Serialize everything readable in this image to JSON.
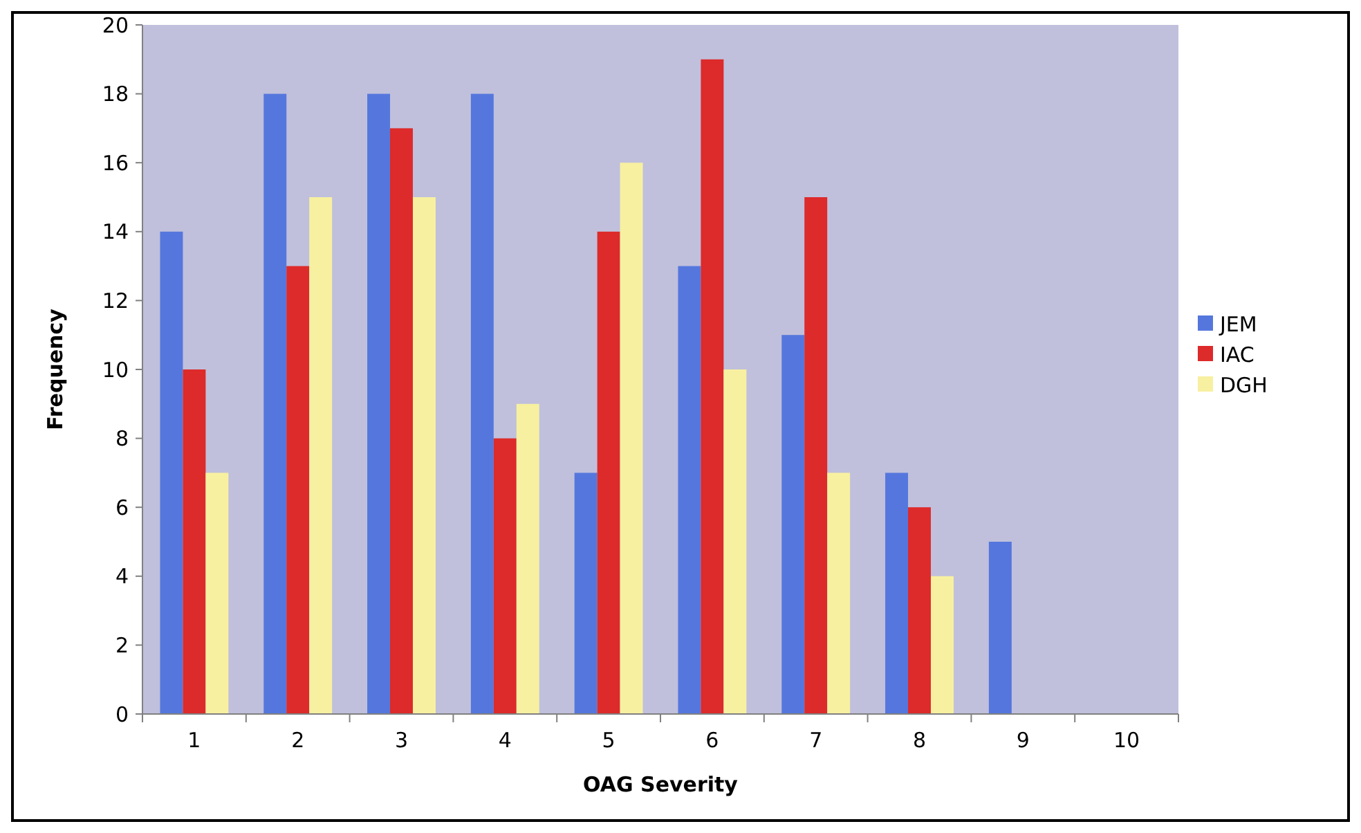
{
  "chart_data": {
    "type": "bar",
    "xlabel": "OAG Severity",
    "ylabel": "Frequency",
    "categories": [
      "1",
      "2",
      "3",
      "4",
      "5",
      "6",
      "7",
      "8",
      "9",
      "10"
    ],
    "series": [
      {
        "name": "JEM",
        "color": "#5577dd",
        "values": [
          14,
          18,
          18,
          18,
          7,
          13,
          11,
          7,
          5,
          0
        ]
      },
      {
        "name": "IAC",
        "color": "#dd2a2a",
        "values": [
          10,
          13,
          17,
          8,
          14,
          19,
          15,
          6,
          0,
          0
        ]
      },
      {
        "name": "DGH",
        "color": "#f7f0a0",
        "values": [
          7,
          15,
          15,
          9,
          16,
          10,
          7,
          4,
          0,
          0
        ]
      }
    ],
    "ylim": [
      0,
      20
    ],
    "yticks": [
      0,
      2,
      4,
      6,
      8,
      10,
      12,
      14,
      16,
      18,
      20
    ],
    "grid": false,
    "legend": "right"
  }
}
